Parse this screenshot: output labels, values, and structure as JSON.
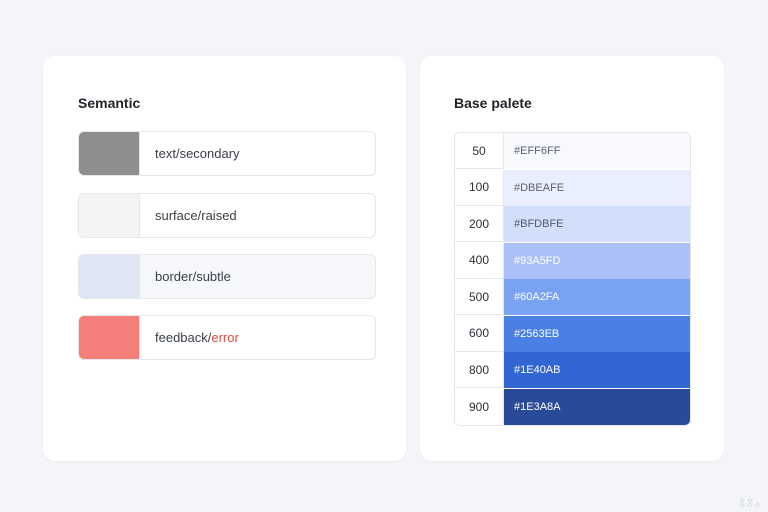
{
  "semantic": {
    "title": "Semantic",
    "tokens": [
      {
        "label": "text/secondary",
        "swatch": "#8e8e8e"
      },
      {
        "label": "surface/raised",
        "swatch": "#f4f4f4"
      },
      {
        "label": "border/subtle",
        "swatch": "#dfe5f3"
      },
      {
        "label_prefix": "feedback/",
        "label_suffix": "error",
        "swatch": "#f47f7a",
        "suffix_color": "#d94a43"
      }
    ]
  },
  "base_palette": {
    "title": "Base palete",
    "steps": [
      {
        "step": "50",
        "hex": "#EFF6FF"
      },
      {
        "step": "100",
        "hex": "#DBEAFE"
      },
      {
        "step": "200",
        "hex": "#BFDBFE"
      },
      {
        "step": "400",
        "hex": "#93A5FD"
      },
      {
        "step": "500",
        "hex": "#60A2FA"
      },
      {
        "step": "600",
        "hex": "#2563EB"
      },
      {
        "step": "800",
        "hex": "#1E40AB"
      },
      {
        "step": "900",
        "hex": "#1E3A8A"
      }
    ]
  },
  "display_colors": {
    "swatches": [
      "#f7f9fd",
      "#e9effc",
      "#d2dffa",
      "#aac0f7",
      "#79a3f2",
      "#4a7fe3",
      "#3166d3",
      "#284a98"
    ],
    "hex_text": [
      "#5a6270",
      "#5a6270",
      "#4d5a70",
      "#ffffff",
      "#ffffff",
      "#ffffff",
      "#ffffff",
      "#ffffff"
    ]
  },
  "corner_decoration": "dots-icon"
}
